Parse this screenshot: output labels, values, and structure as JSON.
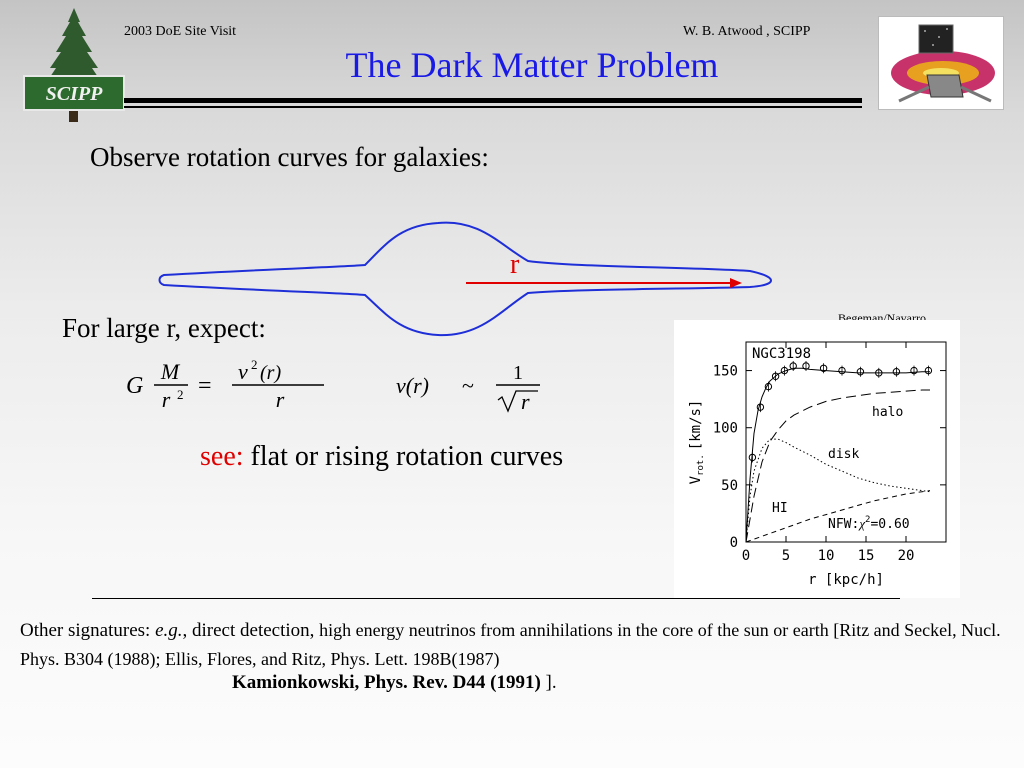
{
  "header": {
    "left": "2003 DoE Site Visit",
    "right": "W. B. Atwood , SCIPP",
    "title": "The Dark Matter Problem",
    "logo_text": "SCIPP"
  },
  "body": {
    "observe": "Observe rotation curves for galaxies:",
    "r_label": "r",
    "large_r": "For large r, expect:",
    "see_word": "see:",
    "see_rest": " flat or rising rotation curves"
  },
  "equations": {
    "eq1_G": "G",
    "eq1_num": "M",
    "eq1_den": "r",
    "eq1_den_sup": "2",
    "eq1_eq": "=",
    "eq1_rhs_num": "v",
    "eq1_rhs_num_sup": "2",
    "eq1_rhs_num_arg": "(r)",
    "eq1_rhs_den": "r",
    "eq2_lhs": "v(r)",
    "eq2_tilde": "~",
    "eq2_num": "1",
    "eq2_den": "r"
  },
  "figure": {
    "credit": "Begeman/Navarro",
    "galaxy": "NGC3198",
    "ylabel_main": "V",
    "ylabel_sub": "rot.",
    "ylabel_unit": "[km/s]",
    "xlabel": "r [kpc/h]",
    "x_ticks": [
      "0",
      "5",
      "10",
      "15",
      "20"
    ],
    "y_ticks": [
      "0",
      "50",
      "100",
      "150"
    ],
    "label_halo": "halo",
    "label_disk": "disk",
    "label_hi": "HI",
    "label_nfw": "NFW:",
    "label_chi": "χ",
    "label_chi_sup": "2",
    "label_chi_val": "=0.60"
  },
  "footer": {
    "lead": "Other signatures: ",
    "eg": "e.g.",
    "direct": ", direct detection, ",
    "small1": "high energy neutrinos from annihilations in the core of the sun or earth [Ritz and Seckel, Nucl. Phys. B304 (1988);  Ellis, Flores, and Ritz, Phys. Lett. 198B(1987)",
    "bold_ref": "Kamionkowski, Phys. Rev. D44 (1991)",
    "tail": " ]."
  },
  "chart_data": {
    "type": "scatter",
    "title": "NGC3198",
    "xlabel": "r [kpc/h]",
    "ylabel": "V rot. [km/s]",
    "xlim": [
      0,
      25
    ],
    "ylim": [
      0,
      175
    ],
    "x_ticks": [
      0,
      5,
      10,
      15,
      20
    ],
    "y_ticks": [
      0,
      50,
      100,
      150
    ],
    "grid": false,
    "series": [
      {
        "name": "",
        "kind": "points",
        "x": [
          0.8,
          1.8,
          2.8,
          3.7,
          4.8,
          5.9,
          7.5,
          9.7,
          12.0,
          14.3,
          16.6,
          18.8,
          21.0,
          22.8
        ],
        "y": [
          74,
          118,
          136,
          145,
          150,
          154,
          154,
          152,
          150,
          149,
          148,
          149,
          150,
          150
        ]
      },
      {
        "name": "",
        "kind": "line",
        "style": "solid",
        "x": [
          0,
          0.5,
          1,
          1.5,
          2,
          2.5,
          3,
          4,
          5,
          6,
          7,
          8,
          10,
          12,
          14,
          16,
          18,
          20,
          22,
          23
        ],
        "y": [
          0,
          55,
          95,
          115,
          127,
          135,
          141,
          147,
          150,
          152,
          152,
          151,
          150,
          149,
          148,
          148,
          148,
          148,
          149,
          149
        ]
      },
      {
        "name": "halo",
        "kind": "line",
        "style": "long-dash",
        "x": [
          0,
          1,
          2,
          3,
          4,
          5,
          6,
          8,
          10,
          12,
          14,
          16,
          18,
          20,
          22,
          23
        ],
        "y": [
          0,
          40,
          70,
          88,
          98,
          106,
          111,
          118,
          123,
          126,
          128,
          130,
          131,
          132,
          133,
          133
        ]
      },
      {
        "name": "disk",
        "kind": "line",
        "style": "dotted",
        "x": [
          0,
          0.5,
          1,
          2,
          3,
          4,
          5,
          6,
          8,
          10,
          12,
          14,
          16,
          18,
          20,
          22,
          23
        ],
        "y": [
          0,
          40,
          62,
          82,
          90,
          90,
          87,
          83,
          76,
          68,
          62,
          56,
          52,
          49,
          47,
          45,
          44
        ]
      },
      {
        "name": "HI",
        "kind": "line",
        "style": "short-dash",
        "x": [
          0,
          2,
          4,
          6,
          8,
          10,
          12,
          14,
          16,
          18,
          20,
          22,
          23
        ],
        "y": [
          0,
          5,
          10,
          15,
          20,
          24,
          28,
          32,
          36,
          39,
          42,
          44,
          45
        ]
      }
    ]
  }
}
